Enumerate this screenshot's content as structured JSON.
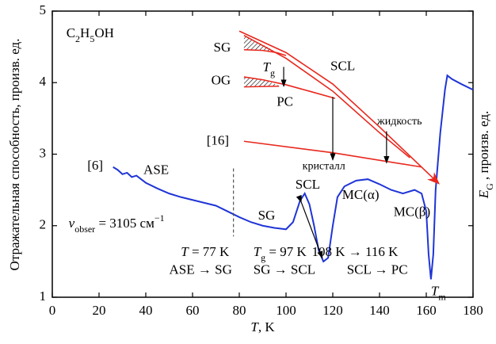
{
  "chart_data": {
    "type": "line",
    "xlabel": [
      "T",
      ", K"
    ],
    "ylabel": "Отражательная способность, произв. ед.",
    "y2label": [
      "E",
      "G",
      " , произв. ед."
    ],
    "xlim": [
      0,
      180
    ],
    "ylim": [
      1,
      5
    ],
    "xticks": [
      0,
      20,
      40,
      60,
      80,
      100,
      120,
      140,
      160,
      180
    ],
    "yticks": [
      1,
      2,
      3,
      4,
      5
    ],
    "series": [
      {
        "color": "#1f35d6",
        "x": [
          26,
          28,
          30,
          32,
          34,
          36,
          40,
          45,
          50,
          55,
          60,
          65,
          70,
          75,
          80,
          85,
          90,
          95,
          100,
          103,
          106,
          108,
          110,
          112,
          114,
          116,
          118,
          120,
          122,
          125,
          130,
          135,
          140,
          145,
          150,
          155,
          158,
          160,
          161,
          162,
          163,
          164,
          166,
          168,
          169,
          171,
          175,
          180
        ],
        "values": [
          2.82,
          2.78,
          2.72,
          2.74,
          2.68,
          2.7,
          2.6,
          2.52,
          2.45,
          2.4,
          2.36,
          2.32,
          2.28,
          2.2,
          2.12,
          2.05,
          2.0,
          1.97,
          1.95,
          2.05,
          2.35,
          2.45,
          2.3,
          2.0,
          1.65,
          1.5,
          1.55,
          2.0,
          2.4,
          2.55,
          2.63,
          2.65,
          2.58,
          2.5,
          2.45,
          2.5,
          2.45,
          2.2,
          1.6,
          1.25,
          1.6,
          2.5,
          3.3,
          3.9,
          4.1,
          4.05,
          3.98,
          3.9
        ]
      },
      {
        "color": "#e8281e",
        "x": [
          80,
          100,
          120,
          140,
          165
        ],
        "values": [
          4.72,
          4.42,
          3.98,
          3.38,
          2.6
        ]
      },
      {
        "color": "#e8281e",
        "x": [
          82,
          100,
          120,
          140,
          153
        ],
        "values": [
          4.66,
          4.34,
          3.88,
          3.3,
          2.95
        ]
      },
      {
        "color": "#e8281e",
        "x": [
          82,
          90,
          100,
          110,
          121
        ],
        "values": [
          4.08,
          4.04,
          3.97,
          3.88,
          3.78
        ]
      },
      {
        "color": "#e8281e",
        "x": [
          82,
          90,
          96,
          100
        ],
        "values": [
          4.46,
          4.45,
          4.42,
          4.38
        ]
      },
      {
        "color": "#e8281e",
        "x": [
          82,
          120,
          158
        ],
        "values": [
          3.18,
          3.02,
          2.82
        ]
      }
    ],
    "annotations": [
      [
        "C",
        "2",
        "H",
        "5",
        "OH"
      ],
      [
        "SG"
      ],
      [
        "OG"
      ],
      [
        "T",
        "g"
      ],
      [
        "PC"
      ],
      [
        "SCL"
      ],
      [
        "жидкость"
      ],
      [
        "[16]"
      ],
      [
        "кристалл"
      ],
      [
        "[6]"
      ],
      [
        "ASE"
      ],
      [
        "SCL"
      ],
      [
        "MC(α)"
      ],
      [
        "MC(β)"
      ],
      [
        "SG"
      ],
      [
        "ν",
        "obser",
        " = 3105 см",
        "−1"
      ],
      [
        "T",
        " = 77 K"
      ],
      [
        "ASE → SG"
      ],
      [
        "T",
        "g",
        " = 97 K"
      ],
      [
        "SG → SCL"
      ],
      [
        "108 K → 116 K"
      ],
      [
        "SCL → PC"
      ],
      [
        "T",
        "m"
      ]
    ]
  }
}
